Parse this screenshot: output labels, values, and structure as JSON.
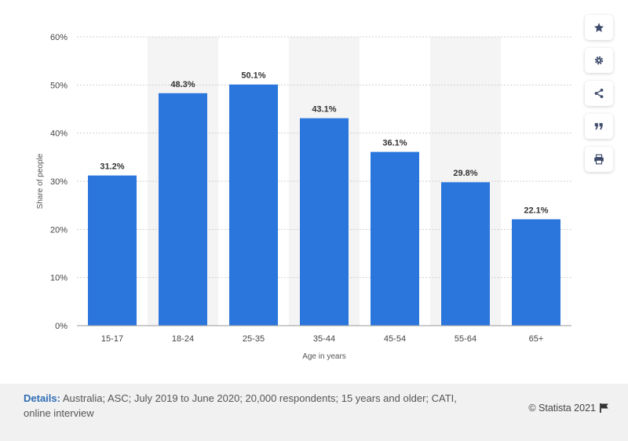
{
  "chart_data": {
    "type": "bar",
    "categories": [
      "15-17",
      "18-24",
      "25-35",
      "35-44",
      "45-54",
      "55-64",
      "65+"
    ],
    "values": [
      31.2,
      48.3,
      50.1,
      43.1,
      36.1,
      29.8,
      22.1
    ],
    "value_labels": [
      "31.2%",
      "48.3%",
      "50.1%",
      "43.1%",
      "36.1%",
      "29.8%",
      "22.1%"
    ],
    "ylim": [
      0,
      60
    ],
    "yticks": [
      0,
      10,
      20,
      30,
      40,
      50,
      60
    ],
    "ytick_labels": [
      "0%",
      "10%",
      "20%",
      "30%",
      "40%",
      "50%",
      "60%"
    ],
    "xlabel": "Age in years",
    "ylabel": "Share of people",
    "grid": true,
    "bar_color": "#2a76dd",
    "band_color": "#f4f4f4"
  },
  "toolbar": {
    "buttons": [
      "star-icon",
      "gear-icon",
      "share-icon",
      "quote-icon",
      "print-icon"
    ]
  },
  "footer": {
    "details_label": "Details:",
    "details_text": " Australia; ASC; July 2019 to June 2020; 20,000 respondents; 15 years and older; CATI, online interview",
    "credit": "© Statista 2021"
  },
  "colors": {
    "accent": "#2f6db5",
    "icon": "#3d4a6b"
  }
}
